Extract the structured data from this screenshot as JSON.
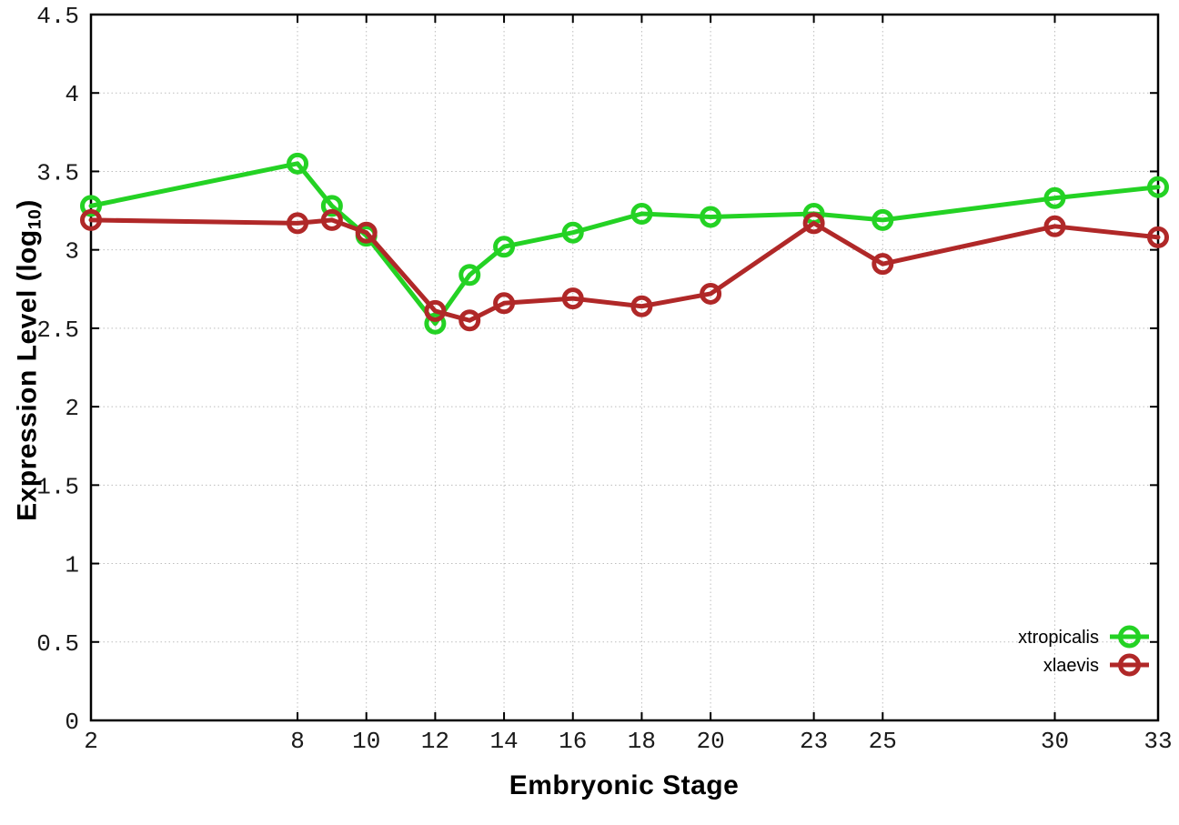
{
  "chart_data": {
    "type": "line",
    "title": "",
    "xlabel": "Embryonic Stage",
    "ylabel": "Expression Level (log10)",
    "ylabel_parts": {
      "pre": "Expression Level (log",
      "sub": "10",
      "post": ")"
    },
    "xlim": [
      2,
      33
    ],
    "ylim": [
      0,
      4.5
    ],
    "xticks": [
      2,
      8,
      10,
      12,
      14,
      16,
      18,
      20,
      23,
      25,
      30,
      33
    ],
    "xtick_labels": [
      "2",
      "8",
      "10",
      "12",
      "14",
      "16",
      "18",
      "20",
      "23",
      "25",
      "30",
      "33"
    ],
    "yticks": [
      0,
      0.5,
      1,
      1.5,
      2,
      2.5,
      3,
      3.5,
      4,
      4.5
    ],
    "ytick_labels": [
      "0",
      "0.5",
      "1",
      "1.5",
      "2",
      "2.5",
      "3",
      "3.5",
      "4",
      "4.5"
    ],
    "grid": true,
    "grid_style": "dotted",
    "grid_color": "#bdbdbd",
    "border_color": "#000000",
    "tick_label_color": "#1a1a1a",
    "marker_style": "open-circle",
    "legend_position": "inside-bottom-right",
    "x": [
      2,
      8,
      9,
      10,
      12,
      13,
      14,
      16,
      18,
      20,
      23,
      25,
      30,
      33
    ],
    "series": [
      {
        "name": "xtropicalis",
        "color": "#24d224",
        "values": [
          3.28,
          3.55,
          3.28,
          3.09,
          2.53,
          2.84,
          3.02,
          3.11,
          3.23,
          3.21,
          3.23,
          3.19,
          3.33,
          3.4
        ]
      },
      {
        "name": "xlaevis",
        "color": "#b02828",
        "values": [
          3.19,
          3.17,
          3.19,
          3.11,
          2.61,
          2.55,
          2.66,
          2.69,
          2.64,
          2.72,
          3.17,
          2.91,
          3.15,
          3.08
        ]
      }
    ]
  }
}
